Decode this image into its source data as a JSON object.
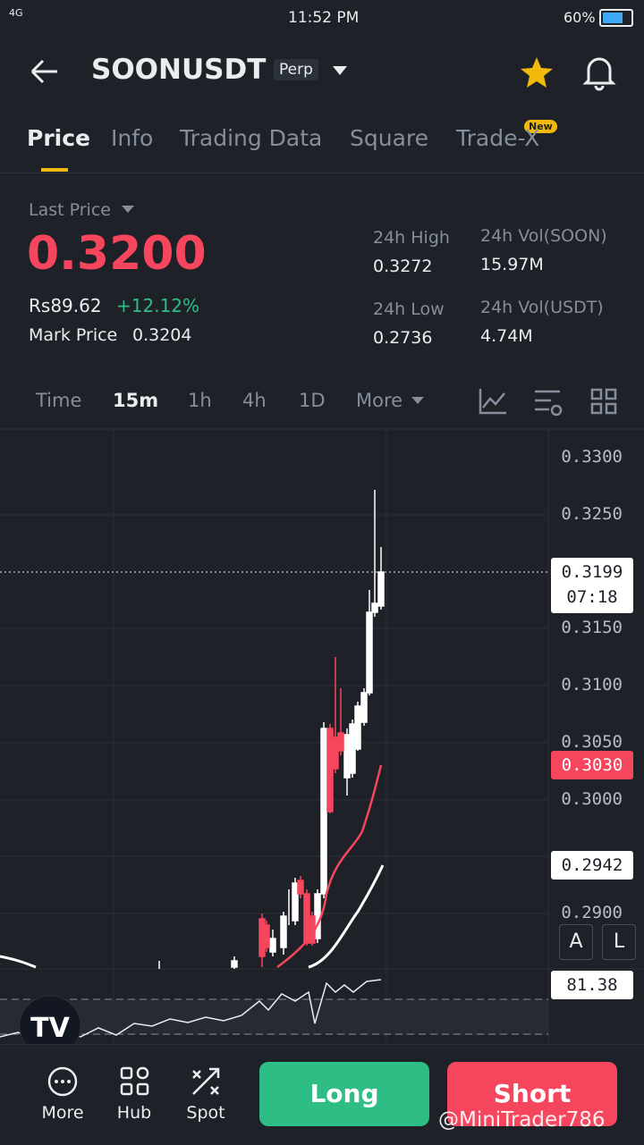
{
  "status": {
    "network": "4G",
    "time": "11:52 PM",
    "battery": "60%"
  },
  "header": {
    "symbol": "SOONUSDT",
    "badge": "Perp"
  },
  "tabs": {
    "items": [
      "Price",
      "Info",
      "Trading Data",
      "Square",
      "Trade-X"
    ],
    "new_badge": "New"
  },
  "price": {
    "last_price_label": "Last Price",
    "last_price": "0.3200",
    "local_price": "Rs89.62",
    "change": "+12.12%",
    "mark_label": "Mark Price",
    "mark_price": "0.3204"
  },
  "stats": [
    {
      "label": "24h High",
      "value": "0.3272"
    },
    {
      "label": "24h Vol(SOON)",
      "value": "15.97M"
    },
    {
      "label": "24h Low",
      "value": "0.2736"
    },
    {
      "label": "24h Vol(USDT)",
      "value": "4.74M"
    }
  ],
  "intervals": [
    "Time",
    "15m",
    "1h",
    "4h",
    "1D",
    "More"
  ],
  "axis_labels": [
    "0.3300",
    "0.3250",
    "0.3150",
    "0.3100",
    "0.3050",
    "0.3000",
    "0.2900"
  ],
  "tags": {
    "current": "0.3199",
    "countdown": "07:18",
    "ma_short": "0.3030",
    "ma_long": "0.2942",
    "indicator": "81.38"
  },
  "chart_buttons": [
    "A",
    "L"
  ],
  "bottom_nav": [
    "More",
    "Hub",
    "Spot"
  ],
  "actions": {
    "long": "Long",
    "short": "Short"
  },
  "watermark": "@MiniTrader786"
}
